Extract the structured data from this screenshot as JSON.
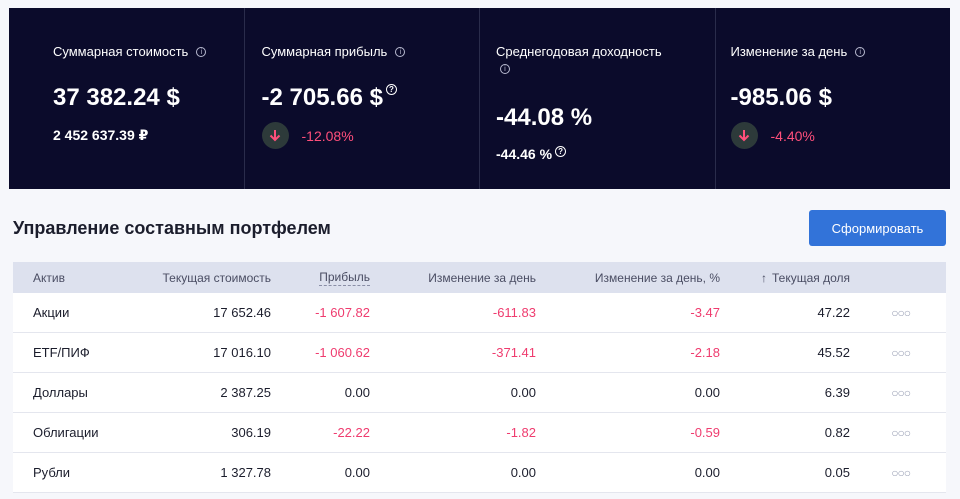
{
  "stats": [
    {
      "label": "Суммарная стоимость",
      "value": "37 382.24 $",
      "sub": "2 452 637.39 ₽"
    },
    {
      "label": "Суммарная прибыль",
      "value": "-2 705.66 $",
      "trend_pct": "-12.08%"
    },
    {
      "label": "Среднегодовая доходность",
      "value": "-44.08 %",
      "sub": "-44.46 %"
    },
    {
      "label": "Изменение за день",
      "value": "-985.06 $",
      "trend_pct": "-4.40%"
    }
  ],
  "section_title": "Управление составным портфелем",
  "form_button": "Сформировать",
  "table": {
    "headers": {
      "asset": "Актив",
      "value": "Текущая стоимость",
      "profit": "Прибыль",
      "day": "Изменение за день",
      "day_pct": "Изменение за день, %",
      "share": "Текущая доля"
    },
    "rows": [
      {
        "asset": "Акции",
        "value": "17 652.46",
        "profit": "-1 607.82",
        "day": "-611.83",
        "day_pct": "-3.47",
        "share": "47.22"
      },
      {
        "asset": "ETF/ПИФ",
        "value": "17 016.10",
        "profit": "-1 060.62",
        "day": "-371.41",
        "day_pct": "-2.18",
        "share": "45.52"
      },
      {
        "asset": "Доллары",
        "value": "2 387.25",
        "profit": "0.00",
        "day": "0.00",
        "day_pct": "0.00",
        "share": "6.39"
      },
      {
        "asset": "Облигации",
        "value": "306.19",
        "profit": "-22.22",
        "day": "-1.82",
        "day_pct": "-0.59",
        "share": "0.82"
      },
      {
        "asset": "Рубли",
        "value": "1 327.78",
        "profit": "0.00",
        "day": "0.00",
        "day_pct": "0.00",
        "share": "0.05"
      }
    ]
  },
  "colors": {
    "banner_bg": "#0b0b2b",
    "negative": "#ef3c6f",
    "accent": "#3273d9"
  }
}
